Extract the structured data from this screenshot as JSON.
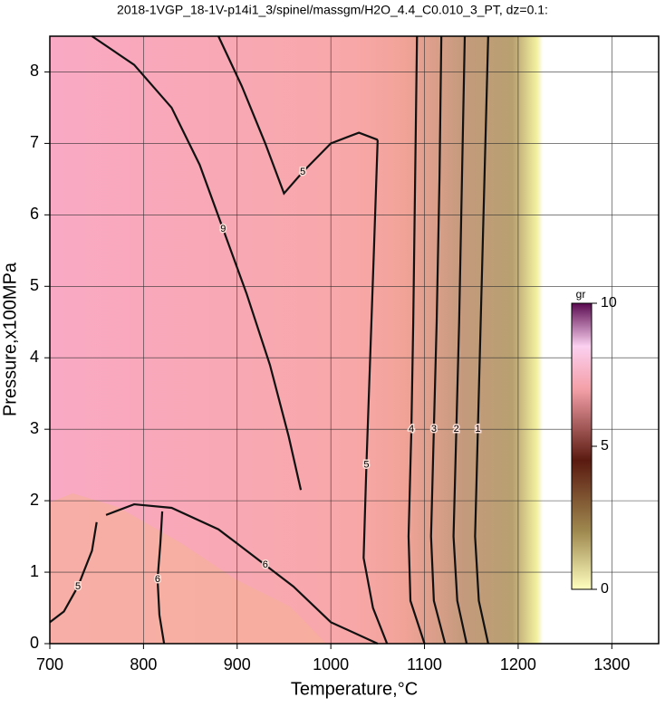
{
  "chart_data": {
    "type": "contour",
    "title": "2018-1VGP_18-1V-p14i1_3/spinel/massgm/H2O_4.4_C0.010_3_PT, dz=0.1:",
    "x_label": "Temperature,°C",
    "y_label": "Pressure,x100MPa",
    "xlim": [
      700,
      1350
    ],
    "ylim": [
      0,
      8.5
    ],
    "xticks": [
      700,
      800,
      900,
      1000,
      1100,
      1200,
      1300
    ],
    "yticks": [
      0,
      1,
      2,
      3,
      4,
      5,
      6,
      7,
      8
    ],
    "grid": true,
    "colorbar": {
      "label": "gr",
      "lim": [
        0,
        10
      ],
      "ticks": [
        0,
        5,
        10
      ]
    },
    "contours": [
      {
        "level": 9,
        "x": [
          745,
          790,
          830,
          860,
          885,
          910,
          935,
          955,
          968
        ],
        "y": [
          8.5,
          8.1,
          7.5,
          6.7,
          5.8,
          4.9,
          3.9,
          2.9,
          2.15
        ]
      },
      {
        "level": 5,
        "x": [
          880,
          905,
          930,
          950,
          970,
          1000,
          1030,
          1050
        ],
        "y": [
          8.5,
          7.8,
          7.0,
          6.3,
          6.6,
          7.0,
          7.15,
          7.05
        ]
      },
      {
        "level": 5,
        "x": [
          1050,
          1046,
          1042,
          1038,
          1035,
          1045,
          1060
        ],
        "y": [
          7.05,
          5.5,
          4.0,
          2.5,
          1.2,
          0.5,
          0
        ]
      },
      {
        "level": 4,
        "x": [
          1092,
          1090,
          1088,
          1086,
          1083,
          1085,
          1100
        ],
        "y": [
          8.5,
          6.5,
          4.5,
          3.0,
          1.5,
          0.6,
          0
        ]
      },
      {
        "level": 3,
        "x": [
          1118,
          1116,
          1113,
          1110,
          1107,
          1110,
          1122
        ],
        "y": [
          8.5,
          6.5,
          4.5,
          3.0,
          1.5,
          0.6,
          0
        ]
      },
      {
        "level": 2,
        "x": [
          1143,
          1140,
          1137,
          1134,
          1131,
          1135,
          1145
        ],
        "y": [
          8.5,
          6.5,
          4.5,
          3.0,
          1.5,
          0.6,
          0
        ]
      },
      {
        "level": 1,
        "x": [
          1168,
          1164,
          1160,
          1157,
          1154,
          1158,
          1168
        ],
        "y": [
          8.5,
          6.5,
          4.5,
          3.0,
          1.5,
          0.6,
          0
        ]
      },
      {
        "level": 6,
        "x": [
          820,
          818,
          815,
          817,
          822
        ],
        "y": [
          1.85,
          1.4,
          0.9,
          0.4,
          0
        ]
      },
      {
        "level": 5,
        "x": [
          700,
          715,
          730,
          745,
          750
        ],
        "y": [
          0.3,
          0.45,
          0.8,
          1.3,
          1.7
        ]
      },
      {
        "level": 6,
        "x": [
          760,
          790,
          830,
          880,
          930,
          960,
          1000,
          1050
        ],
        "y": [
          1.8,
          1.95,
          1.9,
          1.6,
          1.1,
          0.8,
          0.3,
          0
        ]
      }
    ]
  }
}
